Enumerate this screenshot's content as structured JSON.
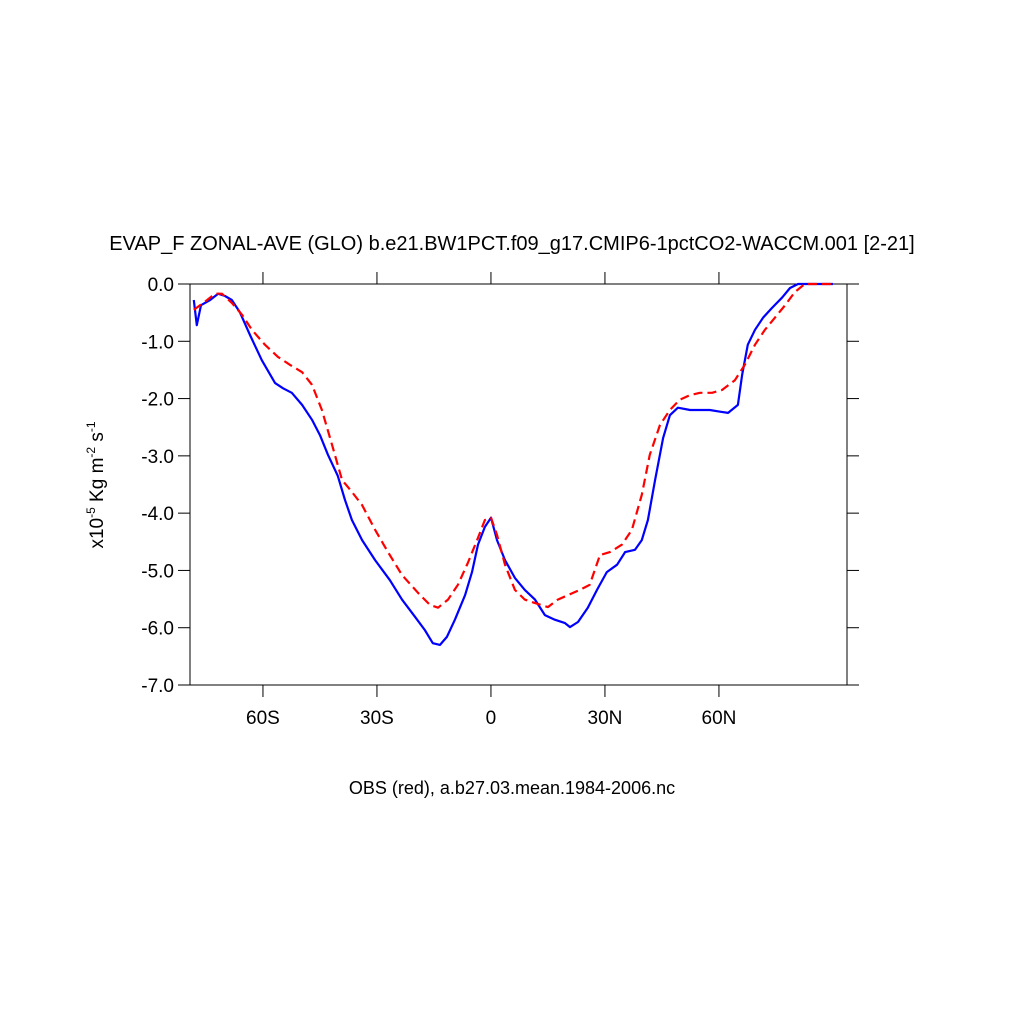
{
  "chart_data": {
    "type": "line",
    "title": "EVAP_F ZONAL-AVE (GLO) b.e21.BW1PCT.f09_g17.CMIP6-1pctCO2-WACCM.001 [2-21]",
    "subtitle": "OBS (red), a.b27.03.mean.1984-2006.nc",
    "ylabel": [
      "x10",
      "-5",
      " Kg m",
      "-2",
      " s",
      "-1"
    ],
    "xlim": [
      -79.2,
      93.7
    ],
    "ylim": [
      -7,
      0
    ],
    "xticks": [
      {
        "value": -60,
        "label": "60S"
      },
      {
        "value": -30,
        "label": "30S"
      },
      0,
      {
        "value": 30,
        "label": "30N"
      },
      {
        "value": 60,
        "label": "60N"
      }
    ],
    "yticks": [
      {
        "value": 0,
        "label": "0.0"
      },
      {
        "value": -1,
        "label": "-1.0"
      },
      {
        "value": -2,
        "label": "-2.0"
      },
      {
        "value": -3,
        "label": "-3.0"
      },
      {
        "value": -4,
        "label": "-4.0"
      },
      {
        "value": -5,
        "label": "-5.0"
      },
      {
        "value": -6,
        "label": "-6.0"
      },
      {
        "value": -7,
        "label": "-7.0"
      }
    ],
    "series": [
      {
        "color": "#0000ff",
        "dash": false,
        "x": [
          -78.2,
          -77.4,
          -76.3,
          -73.9,
          -71.8,
          -70,
          -68.2,
          -66.1,
          -63.4,
          -60.3,
          -56.8,
          -54.7,
          -52.4,
          -49.7,
          -47.1,
          -45,
          -42.9,
          -40.3,
          -38.4,
          -36.6,
          -33.9,
          -30.5,
          -26.6,
          -23.4,
          -20,
          -17.4,
          -15.3,
          -13.4,
          -11.6,
          -9.5,
          -6.8,
          -5,
          -3.4,
          -1.6,
          0,
          1.6,
          3.7,
          6.3,
          8.9,
          11.6,
          14.2,
          16.8,
          19.5,
          20.8,
          22.9,
          25.5,
          27.9,
          30.5,
          33.2,
          35.3,
          37.9,
          39.7,
          41.3,
          43.2,
          45.3,
          47.1,
          49.2,
          52.4,
          55,
          57.6,
          60.3,
          62.4,
          65,
          66.1,
          67.6,
          69.5,
          71.6,
          73.9,
          76.6,
          78.7,
          80.8,
          90
        ],
        "values": [
          -0.28,
          -0.72,
          -0.37,
          -0.28,
          -0.17,
          -0.21,
          -0.28,
          -0.49,
          -0.89,
          -1.33,
          -1.73,
          -1.82,
          -1.9,
          -2.11,
          -2.37,
          -2.64,
          -2.98,
          -3.35,
          -3.77,
          -4.12,
          -4.47,
          -4.82,
          -5.17,
          -5.51,
          -5.81,
          -6.04,
          -6.27,
          -6.3,
          -6.16,
          -5.86,
          -5.43,
          -5.03,
          -4.55,
          -4.24,
          -4.08,
          -4.47,
          -4.82,
          -5.13,
          -5.34,
          -5.51,
          -5.78,
          -5.86,
          -5.92,
          -5.99,
          -5.9,
          -5.65,
          -5.34,
          -5.03,
          -4.9,
          -4.68,
          -4.64,
          -4.47,
          -4.12,
          -3.42,
          -2.69,
          -2.29,
          -2.16,
          -2.2,
          -2.2,
          -2.2,
          -2.23,
          -2.25,
          -2.11,
          -1.59,
          -1.06,
          -0.8,
          -0.59,
          -0.42,
          -0.24,
          -0.07,
          0,
          0
        ]
      },
      {
        "color": "#ff0000",
        "dash": true,
        "x": [
          -78.2,
          -75.3,
          -72.6,
          -70.8,
          -68.2,
          -65.5,
          -62.9,
          -59.5,
          -56.1,
          -52.9,
          -49.7,
          -47.1,
          -44.5,
          -41.8,
          -39.2,
          -36.6,
          -33.9,
          -30.5,
          -27.1,
          -23.4,
          -19.2,
          -16.1,
          -13.9,
          -11.3,
          -8.7,
          -6.1,
          -3.4,
          -1.6,
          0,
          1.6,
          3.7,
          6.3,
          8.9,
          11.6,
          15,
          17.6,
          20.3,
          23.4,
          26,
          28.7,
          31.3,
          34.5,
          37.1,
          39.7,
          41.8,
          44.5,
          47.1,
          49.7,
          52.4,
          55,
          58.2,
          60.8,
          64.2,
          66.8,
          69.5,
          72.1,
          74.7,
          77.4,
          80,
          82.6,
          90
        ],
        "values": [
          -0.45,
          -0.31,
          -0.17,
          -0.17,
          -0.33,
          -0.54,
          -0.8,
          -1.06,
          -1.27,
          -1.41,
          -1.54,
          -1.76,
          -2.2,
          -2.81,
          -3.42,
          -3.63,
          -3.86,
          -4.29,
          -4.68,
          -5.08,
          -5.39,
          -5.6,
          -5.65,
          -5.51,
          -5.25,
          -4.87,
          -4.43,
          -4.12,
          -4.08,
          -4.38,
          -4.9,
          -5.34,
          -5.51,
          -5.57,
          -5.64,
          -5.51,
          -5.43,
          -5.34,
          -5.25,
          -4.73,
          -4.68,
          -4.55,
          -4.29,
          -3.68,
          -2.98,
          -2.46,
          -2.2,
          -2.02,
          -1.94,
          -1.9,
          -1.9,
          -1.85,
          -1.68,
          -1.41,
          -1.06,
          -0.8,
          -0.59,
          -0.37,
          -0.14,
          0,
          0
        ]
      }
    ]
  }
}
